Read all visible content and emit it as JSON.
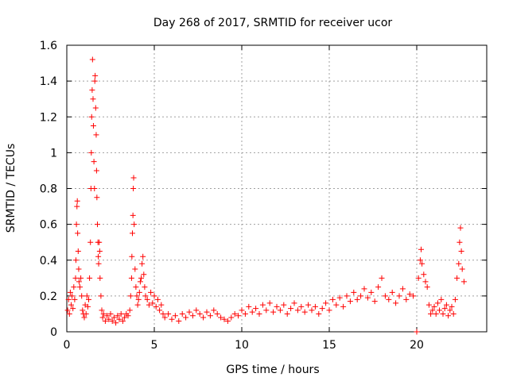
{
  "chart_data": {
    "type": "scatter",
    "title": "Day 268 of 2017, SRMTID for receiver ucor",
    "xlabel": "GPS time / hours",
    "ylabel": "SRMTID / TECUs",
    "xlim": [
      0,
      24
    ],
    "ylim": [
      0,
      1.6
    ],
    "xticks": [
      0,
      5,
      10,
      15,
      20
    ],
    "xtick_labels": [
      "0",
      "5",
      "10",
      "15",
      "20"
    ],
    "yticks": [
      0,
      0.2,
      0.4,
      0.6,
      0.8,
      1,
      1.2,
      1.4,
      1.6
    ],
    "ytick_labels": [
      "0",
      "0.2",
      "0.4",
      "0.6",
      "0.8",
      "1",
      "1.2",
      "1.4",
      "1.6"
    ],
    "grid": true,
    "series": [
      {
        "name": "SRMTID",
        "color": "#ff0000",
        "marker": "+",
        "points": [
          [
            0.05,
            0.12
          ],
          [
            0.1,
            0.18
          ],
          [
            0.15,
            0.1
          ],
          [
            0.2,
            0.22
          ],
          [
            0.25,
            0.15
          ],
          [
            0.3,
            0.2
          ],
          [
            0.35,
            0.13
          ],
          [
            0.4,
            0.25
          ],
          [
            0.45,
            0.18
          ],
          [
            0.5,
            0.3
          ],
          [
            0.52,
            0.4
          ],
          [
            0.55,
            0.6
          ],
          [
            0.58,
            0.7
          ],
          [
            0.6,
            0.73
          ],
          [
            0.62,
            0.55
          ],
          [
            0.65,
            0.45
          ],
          [
            0.68,
            0.35
          ],
          [
            0.7,
            0.28
          ],
          [
            0.75,
            0.25
          ],
          [
            0.8,
            0.3
          ],
          [
            0.85,
            0.2
          ],
          [
            0.9,
            0.12
          ],
          [
            0.95,
            0.1
          ],
          [
            1.0,
            0.08
          ],
          [
            1.05,
            0.15
          ],
          [
            1.1,
            0.1
          ],
          [
            1.15,
            0.2
          ],
          [
            1.2,
            0.14
          ],
          [
            1.25,
            0.18
          ],
          [
            1.3,
            0.3
          ],
          [
            1.35,
            0.5
          ],
          [
            1.38,
            0.8
          ],
          [
            1.4,
            1.0
          ],
          [
            1.42,
            1.2
          ],
          [
            1.45,
            1.35
          ],
          [
            1.47,
            1.52
          ],
          [
            1.5,
            1.3
          ],
          [
            1.52,
            1.15
          ],
          [
            1.55,
            0.95
          ],
          [
            1.58,
            0.8
          ],
          [
            1.6,
            1.4
          ],
          [
            1.62,
            1.43
          ],
          [
            1.65,
            1.25
          ],
          [
            1.68,
            1.1
          ],
          [
            1.7,
            0.9
          ],
          [
            1.72,
            0.75
          ],
          [
            1.75,
            0.6
          ],
          [
            1.78,
            0.5
          ],
          [
            1.8,
            0.42
          ],
          [
            1.82,
            0.38
          ],
          [
            1.85,
            0.5
          ],
          [
            1.88,
            0.45
          ],
          [
            1.9,
            0.3
          ],
          [
            1.95,
            0.2
          ],
          [
            2.0,
            0.12
          ],
          [
            2.05,
            0.08
          ],
          [
            2.1,
            0.1
          ],
          [
            2.2,
            0.06
          ],
          [
            2.3,
            0.09
          ],
          [
            2.4,
            0.07
          ],
          [
            2.5,
            0.1
          ],
          [
            2.6,
            0.06
          ],
          [
            2.7,
            0.08
          ],
          [
            2.8,
            0.05
          ],
          [
            2.9,
            0.09
          ],
          [
            3.0,
            0.07
          ],
          [
            3.1,
            0.1
          ],
          [
            3.2,
            0.06
          ],
          [
            3.3,
            0.08
          ],
          [
            3.4,
            0.1
          ],
          [
            3.5,
            0.09
          ],
          [
            3.6,
            0.12
          ],
          [
            3.65,
            0.2
          ],
          [
            3.7,
            0.3
          ],
          [
            3.72,
            0.42
          ],
          [
            3.75,
            0.55
          ],
          [
            3.78,
            0.65
          ],
          [
            3.8,
            0.8
          ],
          [
            3.82,
            0.86
          ],
          [
            3.85,
            0.6
          ],
          [
            3.9,
            0.35
          ],
          [
            3.95,
            0.25
          ],
          [
            4.0,
            0.2
          ],
          [
            4.05,
            0.15
          ],
          [
            4.1,
            0.18
          ],
          [
            4.15,
            0.22
          ],
          [
            4.2,
            0.28
          ],
          [
            4.25,
            0.3
          ],
          [
            4.3,
            0.38
          ],
          [
            4.35,
            0.42
          ],
          [
            4.4,
            0.32
          ],
          [
            4.45,
            0.25
          ],
          [
            4.5,
            0.2
          ],
          [
            4.6,
            0.18
          ],
          [
            4.7,
            0.15
          ],
          [
            4.8,
            0.22
          ],
          [
            4.9,
            0.16
          ],
          [
            5.0,
            0.2
          ],
          [
            5.1,
            0.14
          ],
          [
            5.2,
            0.18
          ],
          [
            5.3,
            0.12
          ],
          [
            5.4,
            0.15
          ],
          [
            5.5,
            0.1
          ],
          [
            5.6,
            0.08
          ],
          [
            5.8,
            0.1
          ],
          [
            6.0,
            0.07
          ],
          [
            6.2,
            0.09
          ],
          [
            6.4,
            0.06
          ],
          [
            6.6,
            0.1
          ],
          [
            6.8,
            0.08
          ],
          [
            7.0,
            0.11
          ],
          [
            7.2,
            0.09
          ],
          [
            7.4,
            0.12
          ],
          [
            7.6,
            0.1
          ],
          [
            7.8,
            0.08
          ],
          [
            8.0,
            0.11
          ],
          [
            8.2,
            0.09
          ],
          [
            8.4,
            0.12
          ],
          [
            8.6,
            0.1
          ],
          [
            8.8,
            0.08
          ],
          [
            9.0,
            0.07
          ],
          [
            9.2,
            0.06
          ],
          [
            9.4,
            0.08
          ],
          [
            9.6,
            0.1
          ],
          [
            9.8,
            0.09
          ],
          [
            10.0,
            0.12
          ],
          [
            10.2,
            0.1
          ],
          [
            10.4,
            0.14
          ],
          [
            10.6,
            0.11
          ],
          [
            10.8,
            0.13
          ],
          [
            11.0,
            0.1
          ],
          [
            11.2,
            0.15
          ],
          [
            11.4,
            0.12
          ],
          [
            11.6,
            0.16
          ],
          [
            11.8,
            0.11
          ],
          [
            12.0,
            0.14
          ],
          [
            12.2,
            0.12
          ],
          [
            12.4,
            0.15
          ],
          [
            12.6,
            0.1
          ],
          [
            12.8,
            0.13
          ],
          [
            13.0,
            0.16
          ],
          [
            13.2,
            0.12
          ],
          [
            13.4,
            0.14
          ],
          [
            13.6,
            0.11
          ],
          [
            13.8,
            0.15
          ],
          [
            14.0,
            0.12
          ],
          [
            14.2,
            0.14
          ],
          [
            14.4,
            0.1
          ],
          [
            14.6,
            0.13
          ],
          [
            14.8,
            0.16
          ],
          [
            15.0,
            0.12
          ],
          [
            15.2,
            0.18
          ],
          [
            15.4,
            0.15
          ],
          [
            15.6,
            0.19
          ],
          [
            15.8,
            0.14
          ],
          [
            16.0,
            0.2
          ],
          [
            16.2,
            0.17
          ],
          [
            16.4,
            0.22
          ],
          [
            16.6,
            0.18
          ],
          [
            16.8,
            0.2
          ],
          [
            17.0,
            0.24
          ],
          [
            17.2,
            0.19
          ],
          [
            17.4,
            0.22
          ],
          [
            17.6,
            0.17
          ],
          [
            17.8,
            0.25
          ],
          [
            18.0,
            0.3
          ],
          [
            18.2,
            0.2
          ],
          [
            18.4,
            0.18
          ],
          [
            18.6,
            0.22
          ],
          [
            18.8,
            0.16
          ],
          [
            19.0,
            0.2
          ],
          [
            19.2,
            0.24
          ],
          [
            19.4,
            0.18
          ],
          [
            19.6,
            0.21
          ],
          [
            19.8,
            0.2
          ],
          [
            20.0,
            0.0
          ],
          [
            20.1,
            0.3
          ],
          [
            20.2,
            0.4
          ],
          [
            20.25,
            0.46
          ],
          [
            20.3,
            0.38
          ],
          [
            20.4,
            0.32
          ],
          [
            20.5,
            0.28
          ],
          [
            20.6,
            0.25
          ],
          [
            20.7,
            0.15
          ],
          [
            20.8,
            0.1
          ],
          [
            20.9,
            0.12
          ],
          [
            21.0,
            0.14
          ],
          [
            21.1,
            0.1
          ],
          [
            21.2,
            0.16
          ],
          [
            21.3,
            0.12
          ],
          [
            21.4,
            0.18
          ],
          [
            21.5,
            0.1
          ],
          [
            21.6,
            0.13
          ],
          [
            21.7,
            0.15
          ],
          [
            21.8,
            0.09
          ],
          [
            21.9,
            0.12
          ],
          [
            22.0,
            0.14
          ],
          [
            22.1,
            0.1
          ],
          [
            22.2,
            0.18
          ],
          [
            22.3,
            0.3
          ],
          [
            22.4,
            0.38
          ],
          [
            22.45,
            0.5
          ],
          [
            22.5,
            0.58
          ],
          [
            22.55,
            0.45
          ],
          [
            22.6,
            0.35
          ],
          [
            22.7,
            0.28
          ]
        ]
      }
    ]
  }
}
